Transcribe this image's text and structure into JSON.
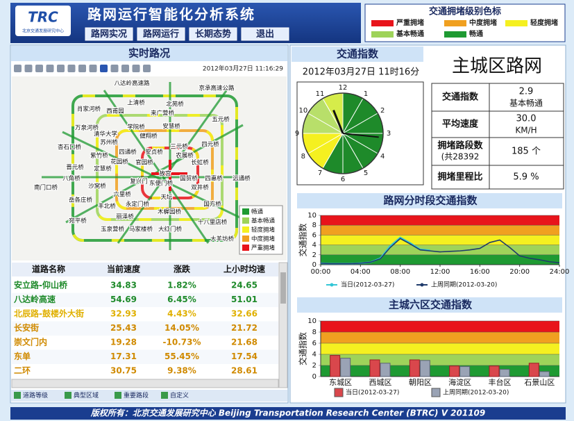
{
  "header": {
    "logo": "TRC",
    "logo_sub": "北京交通发展研究中心",
    "title": "路网运行智能化分析系统",
    "nav": [
      "路网实况",
      "路网运行",
      "长期态势",
      "退出"
    ]
  },
  "congestion_legend": {
    "title": "交通拥堵级别色标",
    "items": [
      {
        "label": "严重拥堵",
        "color": "#e8141b"
      },
      {
        "label": "中度拥堵",
        "color": "#f0a020"
      },
      {
        "label": "轻度拥堵",
        "color": "#f5f020"
      },
      {
        "label": "基本畅通",
        "color": "#9ed35a"
      },
      {
        "label": "畅通",
        "color": "#1e9a32"
      }
    ]
  },
  "map_panel": {
    "title": "实时路况",
    "timestamp": "2012年03月27日  11:16:29",
    "labels": [
      "八达岭高速路",
      "京承高速公路",
      "上清桥",
      "北苑桥",
      "肖家河桥",
      "西甫园",
      "来广营桥",
      "万泉河桥",
      "学院桥",
      "安慧桥",
      "五元桥",
      "清华大学",
      "健翔桥",
      "苏州桥",
      "三元桥",
      "杏石口桥",
      "紫竹桥",
      "四通桥",
      "安贞桥",
      "农展桥",
      "四元桥",
      "晋元桥",
      "定慧桥",
      "花园桥",
      "官园桥",
      "长虹桥",
      "八角桥",
      "复兴门",
      "故宫",
      "国贸桥",
      "四惠桥",
      "远通桥",
      "南门口桥",
      "沙窝桥",
      "东便门桥",
      "双井桥",
      "岳各庄桥",
      "六里桥",
      "天坛",
      "丰北桥",
      "永定门桥",
      "国方桥",
      "宛平桥",
      "丽泽桥",
      "木樨园桥",
      "十八里店桥",
      "玉泉营桥",
      "马家楼桥",
      "大红门桥",
      "大羊坊桥"
    ],
    "legend": [
      {
        "label": "畅通",
        "color": "#1e9a32"
      },
      {
        "label": "基本畅通",
        "color": "#9ed35a"
      },
      {
        "label": "轻度拥堵",
        "color": "#f5f020"
      },
      {
        "label": "中度拥堵",
        "color": "#f0a020"
      },
      {
        "label": "严重拥堵",
        "color": "#e8141b"
      }
    ]
  },
  "road_table": {
    "columns": [
      "道路名称",
      "当前速度",
      "涨跌",
      "上小时均速"
    ],
    "rows": [
      {
        "cells": [
          "安立路-仰山桥",
          "34.83",
          "1.82%",
          "24.65"
        ],
        "color": "#1e8a2a"
      },
      {
        "cells": [
          "八达岭高速",
          "54.69",
          "6.45%",
          "51.01"
        ],
        "color": "#1e8a2a"
      },
      {
        "cells": [
          "北辰路-鼓楼外大街",
          "32.93",
          "4.43%",
          "32.66"
        ],
        "color": "#e0b000"
      },
      {
        "cells": [
          "长安街",
          "25.43",
          "14.05%",
          "21.72"
        ],
        "color": "#d08a00"
      },
      {
        "cells": [
          "崇文门内",
          "19.28",
          "-10.73%",
          "21.68"
        ],
        "color": "#d08a00"
      },
      {
        "cells": [
          "东单",
          "17.31",
          "55.45%",
          "17.54"
        ],
        "color": "#d08a00"
      },
      {
        "cells": [
          "二环",
          "30.75",
          "9.38%",
          "28.61"
        ],
        "color": "#d08a00"
      }
    ],
    "tabs": [
      "道路等级",
      "典型区域",
      "重要路段",
      "自定义"
    ]
  },
  "index_panel": {
    "title": "交通指数",
    "datetime": "2012年03月27日 11时16分",
    "area": "主城区路网",
    "clock_numbers": [
      12,
      1,
      2,
      3,
      4,
      5,
      6,
      7,
      8,
      9,
      10,
      11
    ],
    "metrics": [
      {
        "label": "交通指数",
        "value": "2.9",
        "extra": "基本畅通"
      },
      {
        "label": "平均速度",
        "value": "30.0",
        "extra": "KM/H"
      },
      {
        "label": "拥堵路段数",
        "sub": "(共28392",
        "value": "185 个"
      },
      {
        "label": "拥堵里程比",
        "value": "5.9 %"
      }
    ]
  },
  "chart_data": [
    {
      "type": "line",
      "title": "路网分时段交通指数",
      "y_label": "交通指数",
      "x": [
        0,
        1,
        2,
        3,
        4,
        5,
        6,
        7,
        8,
        9,
        10,
        11,
        12,
        13,
        14,
        15,
        16,
        17,
        18,
        19,
        20,
        21,
        22,
        23,
        24
      ],
      "series": [
        {
          "name": "当日(2012-03-27)",
          "color": "#33c6d6",
          "values": [
            0.3,
            0.2,
            0.2,
            0.2,
            0.3,
            0.5,
            1.3,
            3.8,
            5.5,
            4.4,
            3.1,
            2.9,
            null,
            null,
            null,
            null,
            null,
            null,
            null,
            null,
            null,
            null,
            null,
            null,
            null
          ]
        },
        {
          "name": "上周同期(2012-03-20)",
          "color": "#1f3b6b",
          "values": [
            0.3,
            0.2,
            0.2,
            0.2,
            0.3,
            0.5,
            1.2,
            3.5,
            5.3,
            4.2,
            3.0,
            2.8,
            2.6,
            2.7,
            2.8,
            3.0,
            3.3,
            4.5,
            5.0,
            3.5,
            1.8,
            1.3,
            1.0,
            0.6,
            0.4
          ]
        }
      ],
      "xlim": [
        0,
        24
      ],
      "xticks": [
        {
          "value": 0,
          "label": "00:00"
        },
        {
          "value": 4,
          "label": "04:00"
        },
        {
          "value": 8,
          "label": "08:00"
        },
        {
          "value": 12,
          "label": "12:00"
        },
        {
          "value": 16,
          "label": "16:00"
        },
        {
          "value": 20,
          "label": "20:00"
        },
        {
          "value": 24,
          "label": "24:00"
        }
      ],
      "ylim": [
        0,
        10
      ],
      "yticks": [
        0,
        2,
        4,
        6,
        8,
        10
      ],
      "band_colors": [
        "#1e9a32",
        "#9ed35a",
        "#f5f020",
        "#f0a020",
        "#e8141b"
      ]
    },
    {
      "type": "bar",
      "title": "主城六区交通指数",
      "y_label": "交通指数",
      "categories": [
        "东城区",
        "西城区",
        "朝阳区",
        "海淀区",
        "丰台区",
        "石景山区"
      ],
      "series": [
        {
          "name": "当日(2012-03-27)",
          "color": "#d9474c",
          "values": [
            3.8,
            3.0,
            3.0,
            1.9,
            1.9,
            2.4
          ]
        },
        {
          "name": "上周同期(2012-03-20)",
          "color": "#9aa3b5",
          "values": [
            3.3,
            2.4,
            2.9,
            1.8,
            1.3,
            0.9
          ]
        }
      ],
      "ylim": [
        0,
        10
      ],
      "yticks": [
        0,
        2,
        4,
        6,
        8,
        10
      ],
      "band_colors": [
        "#1e9a32",
        "#9ed35a",
        "#f5f020",
        "#f0a020",
        "#e8141b"
      ]
    }
  ],
  "footer": "版权所有：北京交通发展研究中心 Beijing Transportation Research Center (BTRC)  V 201109"
}
